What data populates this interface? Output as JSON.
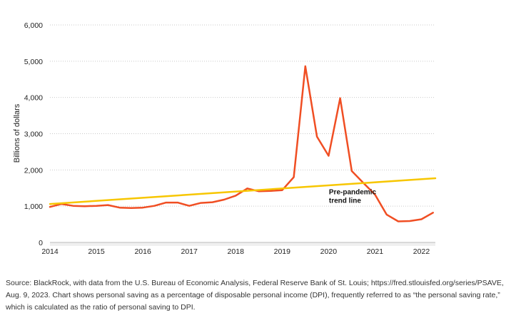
{
  "chart_data": {
    "type": "line",
    "title": "",
    "xlabel": "",
    "ylabel": "Billions of dollars",
    "ylim": [
      0,
      6000
    ],
    "xlim": [
      2014.0,
      2022.3
    ],
    "y_ticks": [
      0,
      1000,
      2000,
      3000,
      4000,
      5000,
      6000
    ],
    "y_tick_labels": [
      "0",
      "1,000",
      "2,000",
      "3,000",
      "4,000",
      "5,000",
      "6,000"
    ],
    "x_ticks": [
      2014,
      2015,
      2016,
      2017,
      2018,
      2019,
      2020,
      2021,
      2022
    ],
    "x_tick_labels": [
      "2014",
      "2015",
      "2016",
      "2017",
      "2018",
      "2019",
      "2020",
      "2021",
      "2022"
    ],
    "grid": "horizontal dotted",
    "series": [
      {
        "name": "",
        "color": "#F04E23",
        "x": [
          2014.0,
          2014.25,
          2014.5,
          2014.75,
          2015.0,
          2015.25,
          2015.5,
          2015.75,
          2016.0,
          2016.25,
          2016.5,
          2016.75,
          2017.0,
          2017.25,
          2017.5,
          2017.75,
          2018.0,
          2018.25,
          2018.5,
          2018.75,
          2019.0,
          2019.25,
          2019.5,
          2019.75,
          2020.0,
          2020.25,
          2020.5,
          2020.75,
          2021.0,
          2021.25,
          2021.5,
          2021.75,
          2022.0,
          2022.25
        ],
        "values": [
          980,
          1060,
          1010,
          1000,
          1010,
          1030,
          960,
          950,
          960,
          1010,
          1100,
          1100,
          1010,
          1090,
          1110,
          1180,
          1290,
          1490,
          1410,
          1420,
          1440,
          1800,
          4860,
          2920,
          2390,
          3980,
          1970,
          1640,
          1320,
          770,
          580,
          590,
          640,
          820
        ]
      },
      {
        "name": "Pre-pandemic trend line",
        "color": "#F7C600",
        "x": [
          2014.0,
          2022.3
        ],
        "values": [
          1060,
          1770
        ]
      }
    ],
    "annotations": [
      {
        "lines": [
          "Pre-pandemic",
          "trend line"
        ],
        "x": 2020.5,
        "y": 1330
      }
    ]
  },
  "source_note": "Source: BlackRock, with data from the U.S. Bureau of Economic Analysis, Federal Reserve Bank of St. Louis; https://fred.stlouisfed.org/series/PSAVE, Aug. 9, 2023. Chart shows personal saving as a percentage of disposable personal income (DPI), frequently referred to as “the personal saving rate,” which is calculated as the ratio of personal saving to DPI."
}
